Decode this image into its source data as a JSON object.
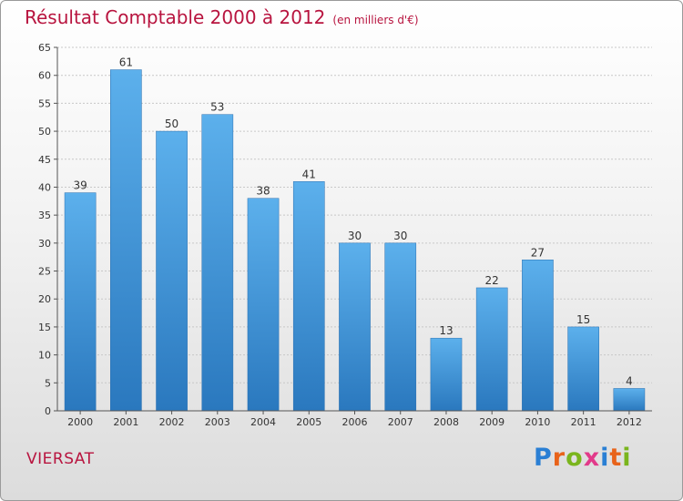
{
  "title": "Résultat Comptable 2000 à 2012",
  "title_unit": "(en milliers d'€)",
  "commune": "VIERSAT",
  "logo": {
    "letters": [
      "P",
      "r",
      "o",
      "x",
      "i",
      "t",
      "i"
    ],
    "colors": [
      "#2a7fd4",
      "#e8631a",
      "#7ab51d",
      "#e23a8a",
      "#2a7fd4",
      "#e8631a",
      "#7ab51d"
    ]
  },
  "colors": {
    "title": "#b8143f",
    "bar_top": "#5cb0ec",
    "bar_bottom": "#2a78be"
  },
  "chart_data": {
    "type": "bar",
    "categories": [
      "2000",
      "2001",
      "2002",
      "2003",
      "2004",
      "2005",
      "2006",
      "2007",
      "2008",
      "2009",
      "2010",
      "2011",
      "2012"
    ],
    "values": [
      39,
      61,
      50,
      53,
      38,
      41,
      30,
      30,
      13,
      22,
      27,
      15,
      4
    ],
    "ylim": [
      0,
      65
    ],
    "yticks": [
      0,
      5,
      10,
      15,
      20,
      25,
      30,
      35,
      40,
      45,
      50,
      55,
      60,
      65
    ],
    "grid": true
  }
}
